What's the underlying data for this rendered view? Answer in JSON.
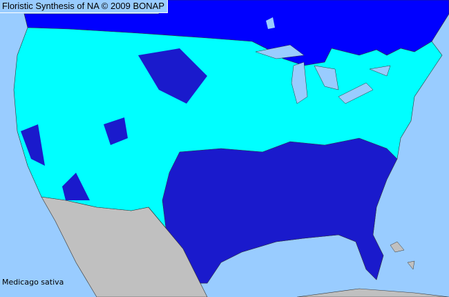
{
  "header": {
    "title": "Floristic Synthesis of NA © 2009 BONAP"
  },
  "map": {
    "species": "Medicago sativa",
    "colors": {
      "ocean": "#99ccff",
      "canada_present": "#0000ff",
      "county_present": "#00ffff",
      "county_absent_or_other": "#1a1acc",
      "mexico": "#c0c0c0",
      "lakes": "#99ccff",
      "borders": "#333333"
    }
  }
}
